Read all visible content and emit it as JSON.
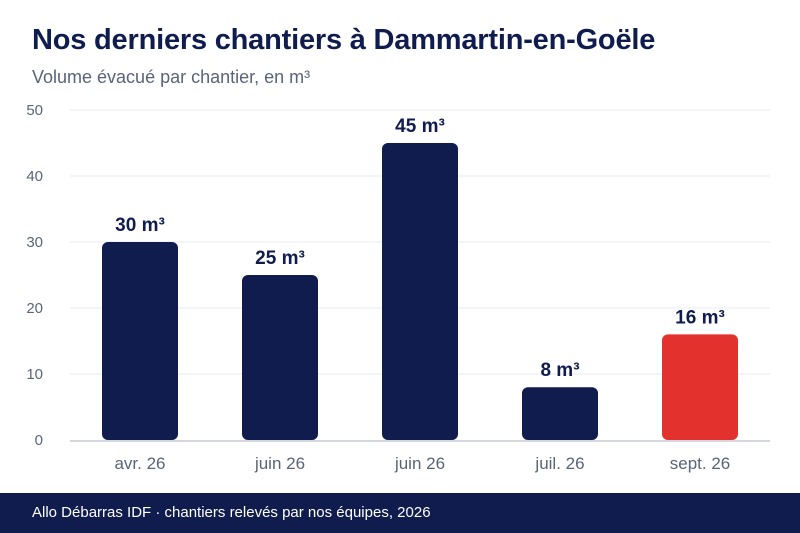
{
  "header": {
    "title": "Nos derniers chantiers à Dammartin-en-Goële",
    "subtitle": "Volume évacué par chantier, en m³"
  },
  "footer": {
    "text": "Allo Débarras IDF · chantiers relevés par nos équipes, 2026"
  },
  "colors": {
    "primary": "#0f1c4d",
    "highlight": "#e3312d",
    "grid": "#e9ebf0",
    "axis": "#c5c9d6",
    "tick_text": "#5a6478"
  },
  "chart_data": {
    "type": "bar",
    "categories": [
      "avr. 26",
      "juin 26",
      "juin 26",
      "juil. 26",
      "sept. 26"
    ],
    "values": [
      30,
      25,
      45,
      8,
      16
    ],
    "data_labels": [
      "30 m³",
      "25 m³",
      "45 m³",
      "8 m³",
      "16 m³"
    ],
    "highlight_index": 4,
    "ylim": [
      0,
      50
    ],
    "yticks": [
      0,
      10,
      20,
      30,
      40,
      50
    ],
    "xlabel": "",
    "ylabel": "",
    "grid": true,
    "legend": "none"
  }
}
